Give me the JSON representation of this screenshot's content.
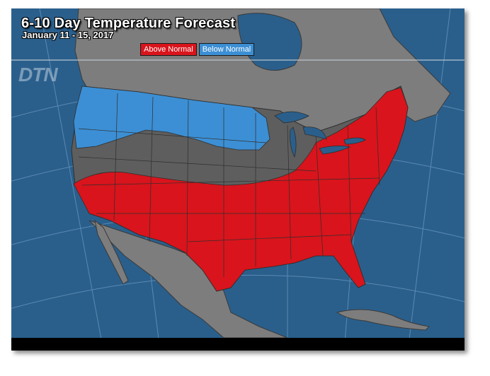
{
  "title": "6-10 Day Temperature Forecast",
  "subtitle": "January 11 - 15, 2017",
  "legend": {
    "above": {
      "label": "Above Normal",
      "color": "#d9141c"
    },
    "below": {
      "label": "Below Normal",
      "color": "#3c8fd4"
    }
  },
  "logo": "DTN",
  "colors": {
    "ocean": "#2a5f8c",
    "land": "#7d7d7d",
    "near_normal": "#5e5e5e",
    "above_normal": "#d9141c",
    "below_normal": "#3c8fd4"
  }
}
